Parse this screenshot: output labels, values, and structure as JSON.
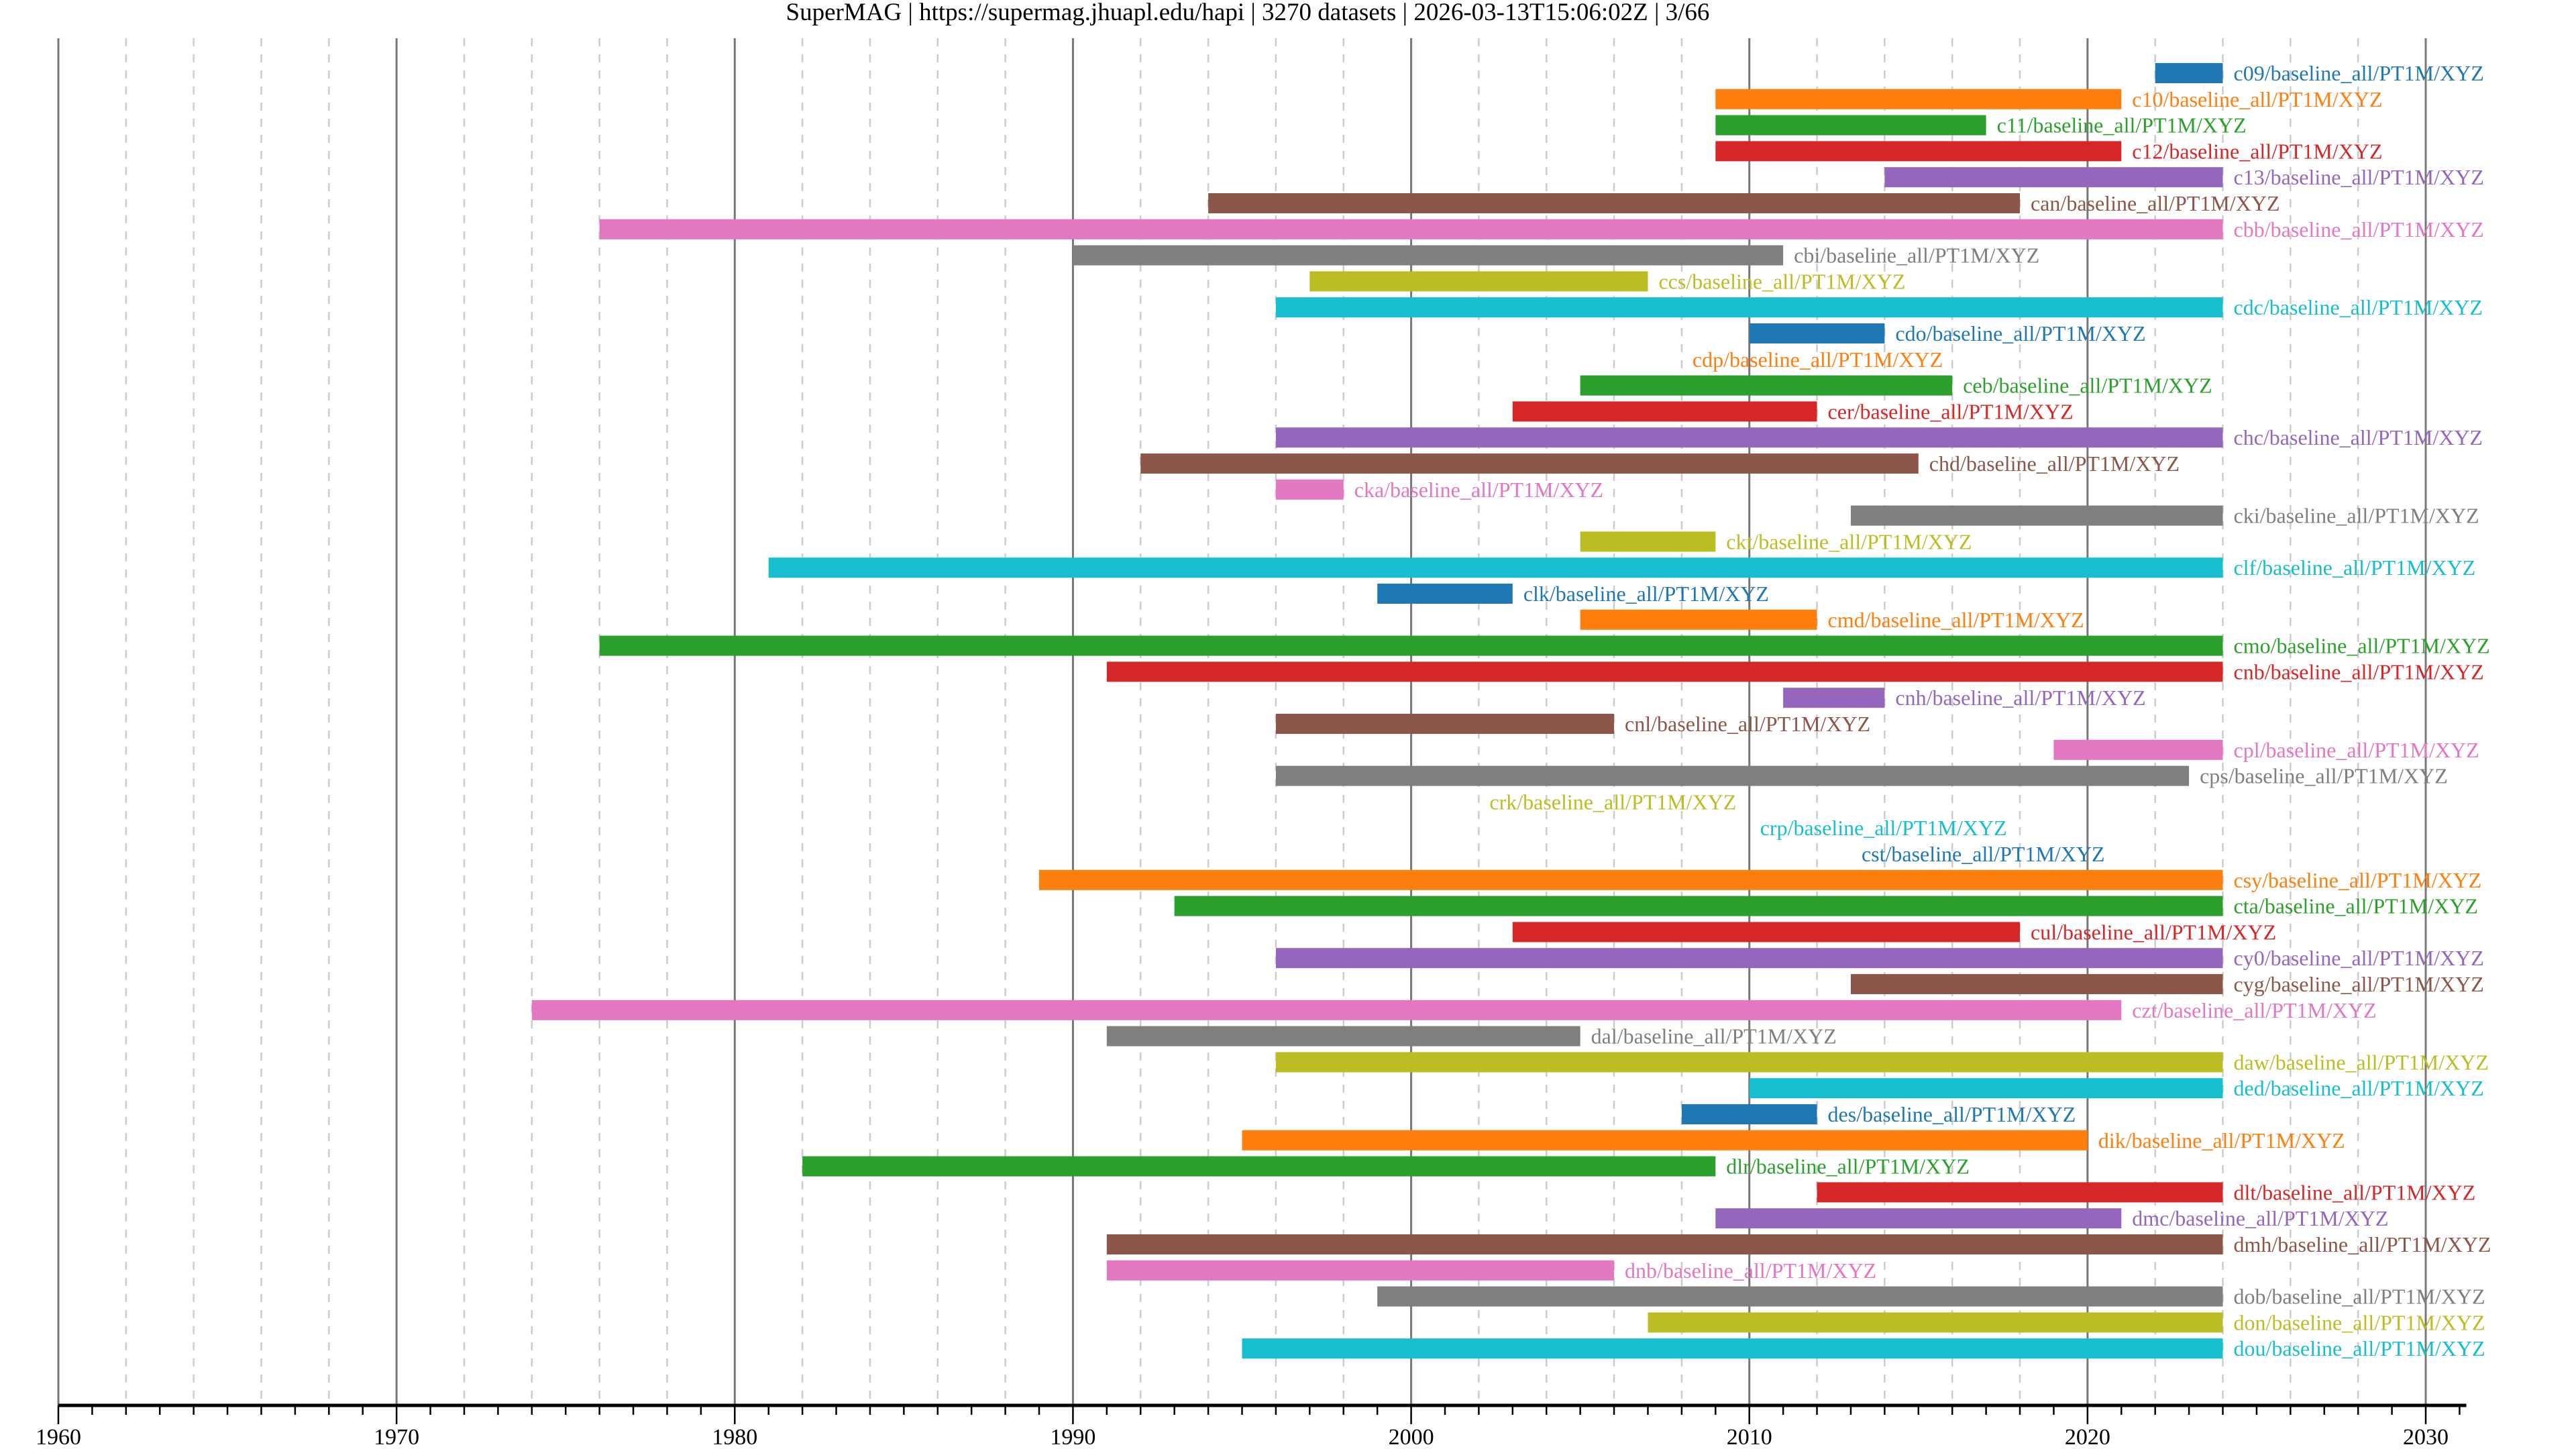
{
  "chart_data": {
    "type": "bar",
    "orientation": "horizontal-timeline",
    "title": "SuperMAG | https://supermag.jhuapl.edu/hapi | 3270 datasets | 2026-03-13T15:06:02Z | 3/66",
    "xlim": [
      1960,
      2031.2
    ],
    "x_ticks": [
      "1960",
      "1970",
      "1980",
      "1990",
      "2000",
      "2010",
      "2020",
      "2030"
    ],
    "x_major_grid_step_years": 10,
    "x_minor_grid_step_years": 2,
    "grid": true,
    "colors": [
      "#1f77b4",
      "#ff7f0e",
      "#2ca02c",
      "#d62728",
      "#9467bd",
      "#8c564b",
      "#e377c2",
      "#7f7f7f",
      "#bcbd22",
      "#17becf"
    ],
    "rows": [
      {
        "label": "c09/baseline_all/PT1M/XYZ",
        "start": 2022,
        "end": 2024
      },
      {
        "label": "c10/baseline_all/PT1M/XYZ",
        "start": 2009,
        "end": 2021
      },
      {
        "label": "c11/baseline_all/PT1M/XYZ",
        "start": 2009,
        "end": 2017
      },
      {
        "label": "c12/baseline_all/PT1M/XYZ",
        "start": 2009,
        "end": 2021
      },
      {
        "label": "c13/baseline_all/PT1M/XYZ",
        "start": 2014,
        "end": 2024
      },
      {
        "label": "can/baseline_all/PT1M/XYZ",
        "start": 1994,
        "end": 2018
      },
      {
        "label": "cbb/baseline_all/PT1M/XYZ",
        "start": 1976,
        "end": 2024
      },
      {
        "label": "cbi/baseline_all/PT1M/XYZ",
        "start": 1990,
        "end": 2011
      },
      {
        "label": "ccs/baseline_all/PT1M/XYZ",
        "start": 1997,
        "end": 2007
      },
      {
        "label": "cdc/baseline_all/PT1M/XYZ",
        "start": 1996,
        "end": 2024
      },
      {
        "label": "cdo/baseline_all/PT1M/XYZ",
        "start": 2010,
        "end": 2014
      },
      {
        "label": "cdp/baseline_all/PT1M/XYZ",
        "start": 2008,
        "end": 2008
      },
      {
        "label": "ceb/baseline_all/PT1M/XYZ",
        "start": 2005,
        "end": 2016
      },
      {
        "label": "cer/baseline_all/PT1M/XYZ",
        "start": 2003,
        "end": 2012
      },
      {
        "label": "chc/baseline_all/PT1M/XYZ",
        "start": 1996,
        "end": 2024
      },
      {
        "label": "chd/baseline_all/PT1M/XYZ",
        "start": 1992,
        "end": 2015
      },
      {
        "label": "cka/baseline_all/PT1M/XYZ",
        "start": 1996,
        "end": 1998
      },
      {
        "label": "cki/baseline_all/PT1M/XYZ",
        "start": 2013,
        "end": 2024
      },
      {
        "label": "ckt/baseline_all/PT1M/XYZ",
        "start": 2005,
        "end": 2009
      },
      {
        "label": "clf/baseline_all/PT1M/XYZ",
        "start": 1981,
        "end": 2024
      },
      {
        "label": "clk/baseline_all/PT1M/XYZ",
        "start": 1999,
        "end": 2003
      },
      {
        "label": "cmd/baseline_all/PT1M/XYZ",
        "start": 2005,
        "end": 2012
      },
      {
        "label": "cmo/baseline_all/PT1M/XYZ",
        "start": 1976,
        "end": 2024
      },
      {
        "label": "cnb/baseline_all/PT1M/XYZ",
        "start": 1991,
        "end": 2024
      },
      {
        "label": "cnh/baseline_all/PT1M/XYZ",
        "start": 2011,
        "end": 2014
      },
      {
        "label": "cnl/baseline_all/PT1M/XYZ",
        "start": 1996,
        "end": 2006
      },
      {
        "label": "cpl/baseline_all/PT1M/XYZ",
        "start": 2019,
        "end": 2024
      },
      {
        "label": "cps/baseline_all/PT1M/XYZ",
        "start": 1996,
        "end": 2023
      },
      {
        "label": "crk/baseline_all/PT1M/XYZ",
        "start": 2002,
        "end": 2002
      },
      {
        "label": "crp/baseline_all/PT1M/XYZ",
        "start": 2010,
        "end": 2010
      },
      {
        "label": "cst/baseline_all/PT1M/XYZ",
        "start": 2013,
        "end": 2013
      },
      {
        "label": "csy/baseline_all/PT1M/XYZ",
        "start": 1989,
        "end": 2024
      },
      {
        "label": "cta/baseline_all/PT1M/XYZ",
        "start": 1993,
        "end": 2024
      },
      {
        "label": "cul/baseline_all/PT1M/XYZ",
        "start": 2003,
        "end": 2018
      },
      {
        "label": "cy0/baseline_all/PT1M/XYZ",
        "start": 1996,
        "end": 2024
      },
      {
        "label": "cyg/baseline_all/PT1M/XYZ",
        "start": 2013,
        "end": 2024
      },
      {
        "label": "czt/baseline_all/PT1M/XYZ",
        "start": 1974,
        "end": 2021
      },
      {
        "label": "dal/baseline_all/PT1M/XYZ",
        "start": 1991,
        "end": 2005
      },
      {
        "label": "daw/baseline_all/PT1M/XYZ",
        "start": 1996,
        "end": 2024
      },
      {
        "label": "ded/baseline_all/PT1M/XYZ",
        "start": 2010,
        "end": 2024
      },
      {
        "label": "des/baseline_all/PT1M/XYZ",
        "start": 2008,
        "end": 2012
      },
      {
        "label": "dik/baseline_all/PT1M/XYZ",
        "start": 1995,
        "end": 2020
      },
      {
        "label": "dlr/baseline_all/PT1M/XYZ",
        "start": 1982,
        "end": 2009
      },
      {
        "label": "dlt/baseline_all/PT1M/XYZ",
        "start": 2012,
        "end": 2024
      },
      {
        "label": "dmc/baseline_all/PT1M/XYZ",
        "start": 2009,
        "end": 2021
      },
      {
        "label": "dmh/baseline_all/PT1M/XYZ",
        "start": 1991,
        "end": 2024
      },
      {
        "label": "dnb/baseline_all/PT1M/XYZ",
        "start": 1991,
        "end": 2006
      },
      {
        "label": "dob/baseline_all/PT1M/XYZ",
        "start": 1999,
        "end": 2024
      },
      {
        "label": "don/baseline_all/PT1M/XYZ",
        "start": 2007,
        "end": 2024
      },
      {
        "label": "dou/baseline_all/PT1M/XYZ",
        "start": 1995,
        "end": 2024
      }
    ]
  }
}
